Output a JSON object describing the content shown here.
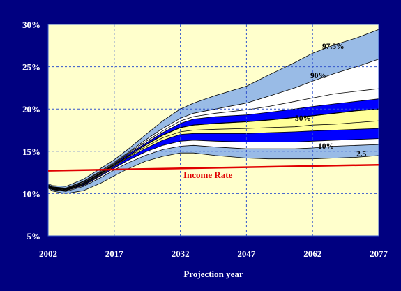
{
  "chart_data": {
    "type": "area",
    "title": "",
    "xlabel": "Projection year",
    "ylabel": "",
    "xlim": [
      2002,
      2077
    ],
    "ylim": [
      0.05,
      0.3
    ],
    "grid": true,
    "x_ticks": [
      "2002",
      "2017",
      "2032",
      "2047",
      "2062",
      "2077"
    ],
    "y_ticks": [
      "5%",
      "10%",
      "15%",
      "20%",
      "25%",
      "30%"
    ],
    "x_tick_values": [
      2002,
      2017,
      2032,
      2047,
      2062,
      2077
    ],
    "y_tick_values": [
      0.05,
      0.1,
      0.15,
      0.2,
      0.25,
      0.3
    ],
    "colors": {
      "background": "#000080",
      "plot_area": "#FFFFCC",
      "grid": "#3355CC",
      "band_outer": "#99BBE6",
      "band_90": "#FFFFFF",
      "band_blue": "#0000FF",
      "band_yellow": "#FFFF99",
      "income": "#E00000"
    },
    "x": [
      2002,
      2003,
      2006,
      2010,
      2014,
      2017,
      2020,
      2024,
      2028,
      2032,
      2035,
      2040,
      2047,
      2052,
      2058,
      2062,
      2067,
      2072,
      2077
    ],
    "percentile_series": [
      {
        "name": "97.5%",
        "values": [
          0.1115,
          0.1095,
          0.1085,
          0.117,
          0.13,
          0.14,
          0.152,
          0.169,
          0.186,
          0.2,
          0.207,
          0.216,
          0.227,
          0.24,
          0.255,
          0.266,
          0.276,
          0.284,
          0.294
        ]
      },
      {
        "name": "",
        "values": [
          0.1105,
          0.108,
          0.1065,
          0.1145,
          0.127,
          0.137,
          0.148,
          0.163,
          0.177,
          0.189,
          0.195,
          0.2,
          0.207,
          0.215,
          0.225,
          0.233,
          0.242,
          0.25,
          0.259
        ]
      },
      {
        "name": "90%",
        "values": [
          0.11,
          0.1075,
          0.106,
          0.114,
          0.126,
          0.136,
          0.147,
          0.161,
          0.174,
          0.186,
          0.191,
          0.195,
          0.199,
          0.203,
          0.209,
          0.213,
          0.218,
          0.221,
          0.224
        ]
      },
      {
        "name": "",
        "values": [
          0.1095,
          0.107,
          0.1055,
          0.113,
          0.125,
          0.135,
          0.146,
          0.159,
          0.172,
          0.183,
          0.188,
          0.191,
          0.193,
          0.196,
          0.2,
          0.203,
          0.206,
          0.209,
          0.212
        ]
      },
      {
        "name": "50%",
        "values": [
          0.109,
          0.1065,
          0.105,
          0.112,
          0.124,
          0.134,
          0.144,
          0.157,
          0.169,
          0.178,
          0.181,
          0.183,
          0.185,
          0.187,
          0.19,
          0.192,
          0.195,
          0.198,
          0.2
        ]
      },
      {
        "name": "",
        "values": [
          0.1085,
          0.106,
          0.1045,
          0.111,
          0.123,
          0.133,
          0.143,
          0.155,
          0.166,
          0.173,
          0.175,
          0.176,
          0.177,
          0.178,
          0.179,
          0.181,
          0.182,
          0.184,
          0.186
        ]
      },
      {
        "name": "",
        "values": [
          0.108,
          0.1055,
          0.104,
          0.1105,
          0.122,
          0.132,
          0.142,
          0.153,
          0.163,
          0.17,
          0.171,
          0.171,
          0.171,
          0.172,
          0.173,
          0.174,
          0.175,
          0.176,
          0.177
        ]
      },
      {
        "name": "10%",
        "values": [
          0.1075,
          0.105,
          0.1035,
          0.1095,
          0.121,
          0.13,
          0.139,
          0.149,
          0.157,
          0.162,
          0.163,
          0.162,
          0.161,
          0.161,
          0.161,
          0.162,
          0.163,
          0.164,
          0.165
        ]
      },
      {
        "name": "",
        "values": [
          0.107,
          0.1045,
          0.1025,
          0.1085,
          0.119,
          0.128,
          0.136,
          0.145,
          0.152,
          0.156,
          0.157,
          0.155,
          0.153,
          0.153,
          0.153,
          0.154,
          0.156,
          0.157,
          0.158
        ]
      },
      {
        "name": "2.5",
        "values": [
          0.1065,
          0.103,
          0.1,
          0.1035,
          0.1125,
          0.121,
          0.129,
          0.138,
          0.144,
          0.148,
          0.148,
          0.145,
          0.142,
          0.141,
          0.141,
          0.141,
          0.142,
          0.143,
          0.145
        ]
      }
    ],
    "band_fills": [
      "band_outer",
      "band_90",
      "band_90",
      "band_blue",
      "band_yellow",
      "band_yellow",
      "band_blue",
      "band_90",
      "band_outer"
    ],
    "income_rate": {
      "name": "Income Rate",
      "x": [
        2002,
        2077
      ],
      "values": [
        0.127,
        0.134
      ]
    },
    "labels": {
      "p975": "97.5%",
      "p90": "90%",
      "p50": "50%",
      "p10": "10%",
      "p25": "2.5",
      "income": "Income Rate"
    }
  }
}
